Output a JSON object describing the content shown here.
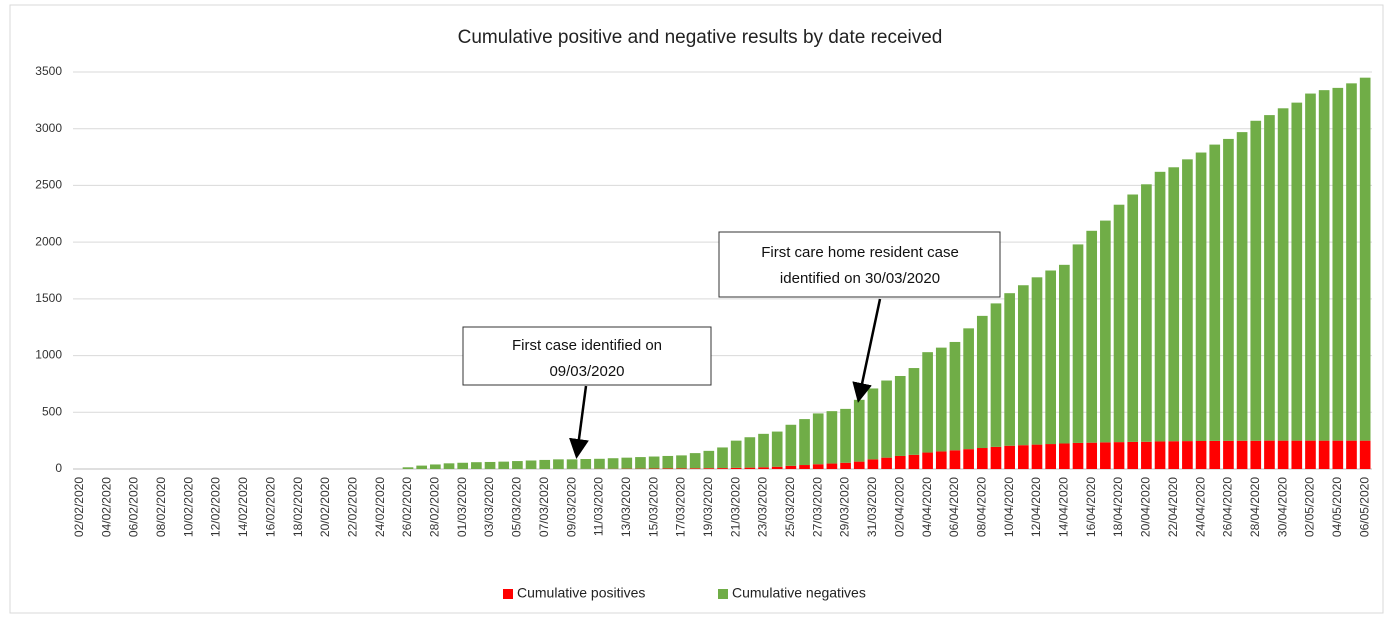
{
  "chart_data": {
    "type": "stacked_bar",
    "title": "Cumulative positive and negative results by date received",
    "categories": [
      "02/02/2020",
      null,
      "04/02/2020",
      null,
      "06/02/2020",
      null,
      "08/02/2020",
      null,
      "10/02/2020",
      null,
      "12/02/2020",
      null,
      "14/02/2020",
      null,
      "16/02/2020",
      null,
      "18/02/2020",
      null,
      "20/02/2020",
      null,
      "22/02/2020",
      null,
      "24/02/2020",
      null,
      "26/02/2020",
      null,
      "28/02/2020",
      null,
      "01/03/2020",
      null,
      "03/03/2020",
      null,
      "05/03/2020",
      null,
      "07/03/2020",
      null,
      "09/03/2020",
      null,
      "11/03/2020",
      null,
      "13/03/2020",
      null,
      "15/03/2020",
      null,
      "17/03/2020",
      null,
      "19/03/2020",
      null,
      "21/03/2020",
      null,
      "23/03/2020",
      null,
      "25/03/2020",
      null,
      "27/03/2020",
      null,
      "29/03/2020",
      null,
      "31/03/2020",
      null,
      "02/04/2020",
      null,
      "04/04/2020",
      null,
      "06/04/2020",
      null,
      "08/04/2020",
      null,
      "10/04/2020",
      null,
      "12/04/2020",
      null,
      "14/04/2020",
      null,
      "16/04/2020",
      null,
      "18/04/2020",
      null,
      "20/04/2020",
      null,
      "22/04/2020",
      null,
      "24/04/2020",
      null,
      "26/04/2020",
      null,
      "28/04/2020",
      null,
      "30/04/2020",
      null,
      "02/05/2020",
      null,
      "04/05/2020",
      null,
      "06/05/2020"
    ],
    "series": [
      {
        "name": "Cumulative positives",
        "color": "#ff0000",
        "values": [
          0,
          0,
          0,
          0,
          0,
          0,
          0,
          0,
          0,
          0,
          0,
          0,
          0,
          0,
          0,
          0,
          0,
          0,
          0,
          0,
          0,
          0,
          0,
          0,
          0,
          0,
          0,
          0,
          0,
          0,
          0,
          0,
          0,
          0,
          0,
          0,
          1,
          1,
          2,
          2,
          3,
          3,
          4,
          5,
          5,
          6,
          7,
          8,
          10,
          12,
          15,
          20,
          28,
          35,
          42,
          48,
          55,
          65,
          85,
          100,
          115,
          125,
          145,
          155,
          165,
          175,
          185,
          195,
          205,
          210,
          215,
          220,
          225,
          230,
          232,
          235,
          237,
          239,
          240,
          243,
          245,
          246,
          247,
          248,
          248,
          249,
          249,
          250,
          250,
          250,
          250,
          250,
          250,
          250,
          250
        ]
      },
      {
        "name": "Cumulative negatives",
        "color": "#70ad47",
        "values": [
          0,
          0,
          0,
          0,
          0,
          0,
          0,
          0,
          0,
          0,
          0,
          0,
          0,
          0,
          0,
          0,
          0,
          0,
          0,
          0,
          0,
          0,
          0,
          0,
          15,
          30,
          40,
          50,
          55,
          60,
          62,
          65,
          70,
          75,
          80,
          85,
          84,
          87,
          88,
          93,
          97,
          102,
          106,
          110,
          115,
          134,
          153,
          182,
          240,
          268,
          295,
          310,
          362,
          405,
          448,
          462,
          475,
          545,
          625,
          680,
          705,
          765,
          885,
          915,
          955,
          1065,
          1165,
          1265,
          1345,
          1410,
          1475,
          1530,
          1575,
          1750,
          1868,
          1955,
          2093,
          2181,
          2270,
          2377,
          2415,
          2484,
          2543,
          2612,
          2662,
          2721,
          2821,
          2870,
          2930,
          2980,
          3060,
          3090,
          3110,
          3150,
          3200
        ]
      }
    ],
    "ylim": [
      0,
      3500
    ],
    "yticks": [
      0,
      500,
      1000,
      1500,
      2000,
      2500,
      3000,
      3500
    ],
    "grid": true,
    "legend": "bottom",
    "annotations": [
      {
        "lines": [
          "First case identified on",
          "09/03/2020"
        ]
      },
      {
        "lines": [
          "First care home resident case",
          "identified on 30/03/2020"
        ]
      }
    ]
  }
}
